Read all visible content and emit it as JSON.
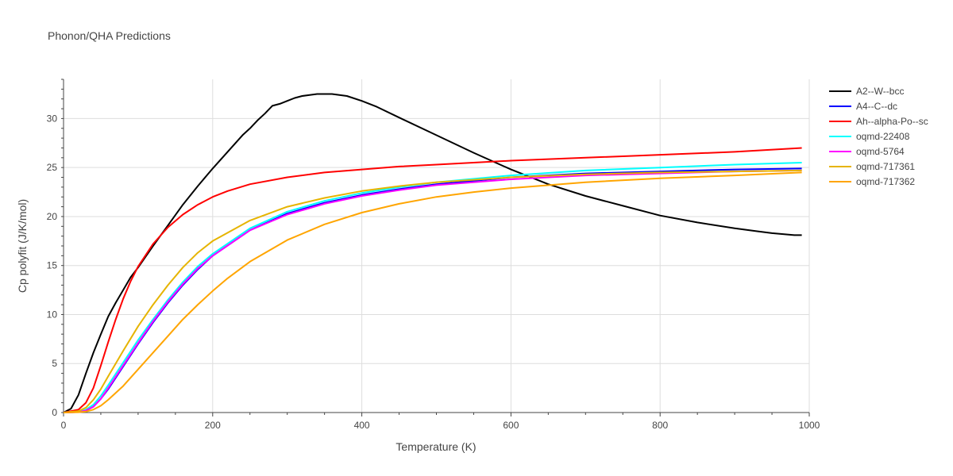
{
  "chart_data": {
    "type": "line",
    "title": "Phonon/QHA Predictions",
    "xlabel": "Temperature (K)",
    "ylabel": "Cp polyfit (J/K/mol)",
    "xlim": [
      0,
      1000
    ],
    "ylim": [
      0,
      34
    ],
    "xticks": [
      0,
      200,
      400,
      600,
      800,
      1000
    ],
    "yticks": [
      0,
      5,
      10,
      15,
      20,
      25,
      30
    ],
    "grid": true,
    "legend_position": "top-right",
    "series": [
      {
        "name": "A2--W--bcc",
        "color": "#000000",
        "x": [
          0,
          10,
          20,
          30,
          40,
          50,
          60,
          70,
          80,
          90,
          100,
          120,
          140,
          160,
          180,
          200,
          220,
          240,
          250,
          260,
          270,
          280,
          290,
          300,
          310,
          320,
          330,
          340,
          350,
          360,
          370,
          380,
          400,
          420,
          450,
          500,
          550,
          600,
          650,
          700,
          750,
          800,
          850,
          900,
          930,
          950,
          980,
          990
        ],
        "y": [
          0,
          0.4,
          1.8,
          4.0,
          6.1,
          8.0,
          9.8,
          11.2,
          12.5,
          13.8,
          14.8,
          17.0,
          19.1,
          21.2,
          23.1,
          24.9,
          26.6,
          28.3,
          29.0,
          29.8,
          30.5,
          31.3,
          31.5,
          31.8,
          32.1,
          32.3,
          32.4,
          32.5,
          32.5,
          32.5,
          32.4,
          32.3,
          31.8,
          31.2,
          30.1,
          28.3,
          26.5,
          24.8,
          23.3,
          22.1,
          21.1,
          20.1,
          19.4,
          18.8,
          18.5,
          18.3,
          18.1,
          18.1
        ]
      },
      {
        "name": "A4--C--dc",
        "color": "#0000ff",
        "x": [
          0,
          20,
          30,
          40,
          50,
          60,
          80,
          100,
          120,
          140,
          160,
          180,
          200,
          250,
          300,
          350,
          400,
          450,
          500,
          600,
          700,
          800,
          900,
          990
        ],
        "y": [
          0,
          0.05,
          0.2,
          0.6,
          1.4,
          2.4,
          4.7,
          7.0,
          9.2,
          11.2,
          13.0,
          14.6,
          16.0,
          18.6,
          20.3,
          21.4,
          22.2,
          22.8,
          23.3,
          24.0,
          24.4,
          24.6,
          24.8,
          24.9
        ]
      },
      {
        "name": "Ah--alpha-Po--sc",
        "color": "#ff0000",
        "x": [
          0,
          20,
          30,
          40,
          50,
          60,
          70,
          80,
          90,
          100,
          120,
          140,
          160,
          180,
          200,
          220,
          250,
          300,
          350,
          400,
          450,
          500,
          600,
          700,
          800,
          900,
          990
        ],
        "y": [
          0,
          0.3,
          1.0,
          2.5,
          4.8,
          7.2,
          9.5,
          11.6,
          13.4,
          14.9,
          17.2,
          18.9,
          20.2,
          21.2,
          22.0,
          22.6,
          23.3,
          24.0,
          24.5,
          24.8,
          25.1,
          25.3,
          25.7,
          26.0,
          26.3,
          26.6,
          27.0
        ]
      },
      {
        "name": "oqmd-22408",
        "color": "#00ffff",
        "x": [
          0,
          20,
          30,
          40,
          50,
          60,
          80,
          100,
          120,
          140,
          160,
          180,
          200,
          250,
          300,
          350,
          400,
          450,
          500,
          600,
          700,
          800,
          900,
          990
        ],
        "y": [
          0,
          0.08,
          0.3,
          0.8,
          1.7,
          2.8,
          5.1,
          7.4,
          9.5,
          11.5,
          13.3,
          14.9,
          16.2,
          18.8,
          20.5,
          21.6,
          22.4,
          23.0,
          23.5,
          24.2,
          24.7,
          25.0,
          25.3,
          25.5
        ]
      },
      {
        "name": "oqmd-5764",
        "color": "#ff00ff",
        "x": [
          0,
          20,
          30,
          40,
          50,
          60,
          80,
          100,
          120,
          140,
          160,
          180,
          200,
          250,
          300,
          350,
          400,
          450,
          500,
          600,
          700,
          800,
          900,
          990
        ],
        "y": [
          0,
          0.05,
          0.2,
          0.6,
          1.4,
          2.5,
          4.8,
          7.1,
          9.3,
          11.3,
          13.1,
          14.7,
          16.0,
          18.6,
          20.2,
          21.3,
          22.1,
          22.7,
          23.2,
          23.8,
          24.2,
          24.4,
          24.6,
          24.7
        ]
      },
      {
        "name": "oqmd-717361",
        "color": "#e6b400",
        "x": [
          0,
          20,
          30,
          40,
          50,
          60,
          80,
          100,
          120,
          140,
          160,
          180,
          200,
          250,
          300,
          350,
          400,
          450,
          500,
          600,
          700,
          800,
          900,
          990
        ],
        "y": [
          0,
          0.15,
          0.5,
          1.3,
          2.4,
          3.7,
          6.3,
          8.8,
          11.0,
          13.0,
          14.8,
          16.3,
          17.5,
          19.6,
          21.0,
          21.9,
          22.6,
          23.1,
          23.5,
          24.0,
          24.3,
          24.5,
          24.6,
          24.7
        ]
      },
      {
        "name": "oqmd-717362",
        "color": "#ffa500",
        "x": [
          0,
          20,
          30,
          40,
          50,
          60,
          80,
          100,
          120,
          140,
          160,
          180,
          200,
          220,
          250,
          300,
          350,
          400,
          450,
          500,
          550,
          600,
          700,
          800,
          900,
          990
        ],
        "y": [
          0,
          0.03,
          0.1,
          0.3,
          0.7,
          1.3,
          2.7,
          4.4,
          6.1,
          7.8,
          9.5,
          11.0,
          12.4,
          13.7,
          15.4,
          17.6,
          19.2,
          20.4,
          21.3,
          22.0,
          22.5,
          22.9,
          23.5,
          23.9,
          24.2,
          24.5
        ]
      }
    ]
  }
}
